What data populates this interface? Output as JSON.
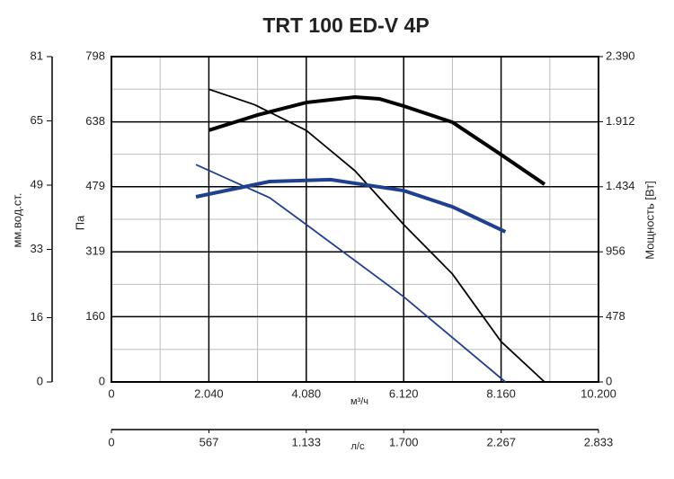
{
  "chart_data": {
    "type": "line",
    "title": "TRT 100 ED-V 4P",
    "x_label": "м³/ч",
    "x2_label": "л/с",
    "y_label": "Па",
    "y2_label": "Мощность [Вт]",
    "y3_label": "мм.вод.ст.",
    "xlim": [
      0,
      10200
    ],
    "xticks": [
      0,
      {
        "value": 2040,
        "label": "2.040"
      },
      {
        "value": 4080,
        "label": "4.080"
      },
      {
        "value": 6120,
        "label": "6.120"
      },
      {
        "value": 8160,
        "label": "8.160"
      },
      {
        "value": 10200,
        "label": "10.200"
      }
    ],
    "x2lim": [
      0,
      2833
    ],
    "x2ticks": [
      0,
      567,
      {
        "value": 1133,
        "label": "1.133"
      },
      {
        "value": 1700,
        "label": "1.700"
      },
      {
        "value": 2267,
        "label": "2.267"
      },
      {
        "value": 2833,
        "label": "2.833"
      }
    ],
    "ylim": [
      0,
      798
    ],
    "yticks": [
      0,
      160,
      319,
      479,
      638,
      798
    ],
    "y2lim": [
      0,
      2390
    ],
    "y2ticks": [
      0,
      478,
      956,
      {
        "value": 1434,
        "label": "1.434"
      },
      {
        "value": 1912,
        "label": "1.912"
      },
      {
        "value": 2390,
        "label": "2.390"
      }
    ],
    "y3lim": [
      0,
      81
    ],
    "y3ticks": [
      0,
      16,
      33,
      49,
      65,
      81
    ],
    "grid": true,
    "series": [
      {
        "color": "#000000",
        "axis": "y",
        "x": [
          2040,
          3000,
          4080,
          5100,
          6120,
          7140,
          8160,
          9070
        ],
        "values": [
          718,
          680,
          617,
          518,
          386,
          265,
          99,
          0
        ]
      },
      {
        "color": "#000000",
        "axis": "y2",
        "x": [
          2040,
          3060,
          4080,
          5100,
          5610,
          6120,
          7140,
          8160,
          9070
        ],
        "values": [
          1849,
          1961,
          2053,
          2093,
          2080,
          2027,
          1908,
          1670,
          1452
        ]
      },
      {
        "color": "#1f3f8f",
        "axis": "y",
        "x": [
          1770,
          3310,
          4080,
          6120,
          8250
        ],
        "values": [
          533,
          452,
          386,
          209,
          0
        ]
      },
      {
        "color": "#1f3f8f",
        "axis": "y2",
        "x": [
          1770,
          3310,
          4590,
          6120,
          7140,
          8250
        ],
        "values": [
          1360,
          1472,
          1486,
          1406,
          1287,
          1103
        ]
      }
    ]
  }
}
